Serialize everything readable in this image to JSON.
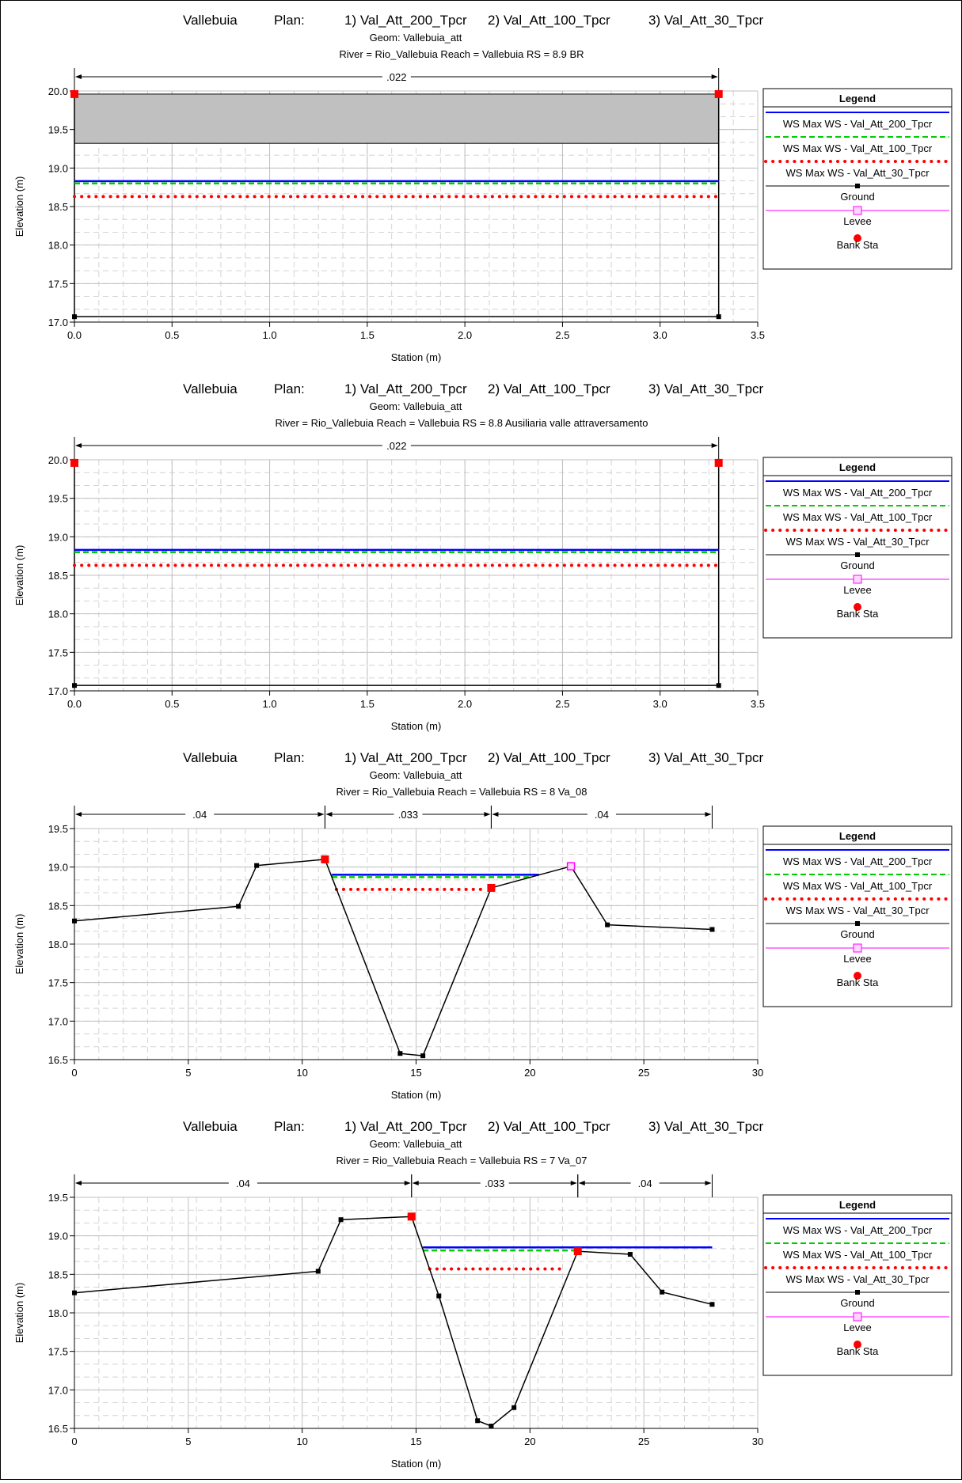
{
  "legend_shared": {
    "title": "Legend",
    "entries": [
      {
        "label": "WS Max WS - Val_Att_200_Tpcr",
        "color": "#0000ff",
        "style": "solid"
      },
      {
        "label": "WS Max WS - Val_Att_100_Tpcr",
        "color": "#00cc00",
        "style": "dashed"
      },
      {
        "label": "WS Max WS - Val_Att_30_Tpcr",
        "color": "#ff0000",
        "style": "dotted"
      },
      {
        "label": "Ground",
        "color": "#000000",
        "style": "line-square"
      },
      {
        "label": "Levee",
        "color": "#ff00ff",
        "style": "line-open-square"
      },
      {
        "label": "Bank Sta",
        "color": "#ff0000",
        "style": "circle"
      }
    ]
  },
  "chart_data": [
    {
      "type": "line",
      "title_parts": [
        "Vallebuia",
        "Plan:",
        "1) Val_Att_200_Tpcr",
        "2) Val_Att_100_Tpcr",
        "3) Val_Att_30_Tpcr"
      ],
      "geom": "Geom: Vallebuia_att",
      "river_line": "River = Rio_Vallebuia   Reach = Vallebuia      RS = 8.9      BR",
      "xlabel": "Station (m)",
      "ylabel": "Elevation (m)",
      "xlim": [
        0,
        3.5
      ],
      "ylim": [
        17.0,
        20.0
      ],
      "xticks": [
        "0.0",
        "0.5",
        "1.0",
        "1.5",
        "2.0",
        "2.5",
        "3.0",
        "3.5"
      ],
      "yticks": [
        "17.0",
        "17.5",
        "18.0",
        "18.5",
        "19.0",
        "19.5",
        "20.0"
      ],
      "xtick_values": [
        0,
        0.5,
        1.0,
        1.5,
        2.0,
        2.5,
        3.0,
        3.5
      ],
      "ytick_values": [
        17.0,
        17.5,
        18.0,
        18.5,
        19.0,
        19.5,
        20.0
      ],
      "mannings": [
        {
          "from": 0,
          "to": 3.3,
          "label": ".022"
        }
      ],
      "ground": [
        [
          0,
          17.07
        ],
        [
          3.3,
          17.07
        ]
      ],
      "walls": [
        [
          0,
          17.07,
          19.96
        ],
        [
          3.3,
          17.07,
          19.96
        ]
      ],
      "bridge_deck": {
        "x1": 0,
        "x2": 3.3,
        "low": 19.32,
        "high": 19.96
      },
      "ws": [
        {
          "name": "WS Max WS - Val_Att_200_Tpcr",
          "x1": 0,
          "x2": 3.3,
          "y": 18.83
        },
        {
          "name": "WS Max WS - Val_Att_100_Tpcr",
          "x1": 0,
          "x2": 3.3,
          "y": 18.8
        },
        {
          "name": "WS Max WS - Val_Att_30_Tpcr",
          "x1": 0,
          "x2": 3.3,
          "y": 18.63
        }
      ],
      "bank": [
        [
          0,
          19.96
        ],
        [
          3.3,
          19.96
        ]
      ],
      "levee": []
    },
    {
      "type": "line",
      "title_parts": [
        "Vallebuia",
        "Plan:",
        "1) Val_Att_200_Tpcr",
        "2) Val_Att_100_Tpcr",
        "3) Val_Att_30_Tpcr"
      ],
      "geom": "Geom: Vallebuia_att",
      "river_line": "River = Rio_Vallebuia   Reach = Vallebuia      RS = 8.8  Ausiliaria valle attraversamento",
      "xlabel": "Station (m)",
      "ylabel": "Elevation (m)",
      "xlim": [
        0,
        3.5
      ],
      "ylim": [
        17.0,
        20.0
      ],
      "xticks": [
        "0.0",
        "0.5",
        "1.0",
        "1.5",
        "2.0",
        "2.5",
        "3.0",
        "3.5"
      ],
      "yticks": [
        "17.0",
        "17.5",
        "18.0",
        "18.5",
        "19.0",
        "19.5",
        "20.0"
      ],
      "xtick_values": [
        0,
        0.5,
        1.0,
        1.5,
        2.0,
        2.5,
        3.0,
        3.5
      ],
      "ytick_values": [
        17.0,
        17.5,
        18.0,
        18.5,
        19.0,
        19.5,
        20.0
      ],
      "mannings": [
        {
          "from": 0,
          "to": 3.3,
          "label": ".022"
        }
      ],
      "ground": [
        [
          0,
          17.07
        ],
        [
          3.3,
          17.07
        ]
      ],
      "walls": [
        [
          0,
          17.07,
          19.96
        ],
        [
          3.3,
          17.07,
          19.96
        ]
      ],
      "ws": [
        {
          "name": "WS Max WS - Val_Att_200_Tpcr",
          "x1": 0,
          "x2": 3.3,
          "y": 18.83
        },
        {
          "name": "WS Max WS - Val_Att_100_Tpcr",
          "x1": 0,
          "x2": 3.3,
          "y": 18.8
        },
        {
          "name": "WS Max WS - Val_Att_30_Tpcr",
          "x1": 0,
          "x2": 3.3,
          "y": 18.63
        }
      ],
      "bank": [
        [
          0,
          19.96
        ],
        [
          3.3,
          19.96
        ]
      ],
      "levee": []
    },
    {
      "type": "line",
      "title_parts": [
        "Vallebuia",
        "Plan:",
        "1) Val_Att_200_Tpcr",
        "2) Val_Att_100_Tpcr",
        "3) Val_Att_30_Tpcr"
      ],
      "geom": "Geom: Vallebuia_att",
      "river_line": "River = Rio_Vallebuia   Reach = Vallebuia      RS = 8  Va_08",
      "xlabel": "Station (m)",
      "ylabel": "Elevation (m)",
      "xlim": [
        0,
        30
      ],
      "ylim": [
        16.5,
        19.5
      ],
      "xticks": [
        "0",
        "5",
        "10",
        "15",
        "20",
        "25",
        "30"
      ],
      "yticks": [
        "16.5",
        "17.0",
        "17.5",
        "18.0",
        "18.5",
        "19.0",
        "19.5"
      ],
      "xtick_values": [
        0,
        5,
        10,
        15,
        20,
        25,
        30
      ],
      "ytick_values": [
        16.5,
        17.0,
        17.5,
        18.0,
        18.5,
        19.0,
        19.5
      ],
      "mannings": [
        {
          "from": 0,
          "to": 11.0,
          "label": ".04"
        },
        {
          "from": 11.0,
          "to": 18.3,
          "label": ".033"
        },
        {
          "from": 18.3,
          "to": 28.0,
          "label": ".04"
        }
      ],
      "ground": [
        [
          0,
          18.3
        ],
        [
          7.2,
          18.49
        ],
        [
          8.0,
          19.02
        ],
        [
          11.0,
          19.1
        ],
        [
          14.3,
          16.58
        ],
        [
          15.3,
          16.55
        ],
        [
          18.3,
          18.73
        ],
        [
          21.8,
          19.01
        ],
        [
          23.4,
          18.25
        ],
        [
          28.0,
          18.19
        ]
      ],
      "walls": [],
      "ws": [
        {
          "name": "WS Max WS - Val_Att_200_Tpcr",
          "x1": 11.3,
          "x2": 20.4,
          "y": 18.9
        },
        {
          "name": "WS Max WS - Val_Att_100_Tpcr",
          "x1": 11.3,
          "x2": 20.0,
          "y": 18.87
        },
        {
          "name": "WS Max WS - Val_Att_30_Tpcr",
          "x1": 11.5,
          "x2": 18.0,
          "y": 18.71
        }
      ],
      "bank": [
        [
          11.0,
          19.1
        ],
        [
          18.3,
          18.73
        ]
      ],
      "levee": [
        [
          21.8,
          19.01
        ]
      ]
    },
    {
      "type": "line",
      "title_parts": [
        "Vallebuia",
        "Plan:",
        "1) Val_Att_200_Tpcr",
        "2) Val_Att_100_Tpcr",
        "3) Val_Att_30_Tpcr"
      ],
      "geom": "Geom: Vallebuia_att",
      "river_line": "River = Rio_Vallebuia   Reach = Vallebuia      RS = 7  Va_07",
      "xlabel": "Station (m)",
      "ylabel": "Elevation (m)",
      "xlim": [
        0,
        30
      ],
      "ylim": [
        16.5,
        19.5
      ],
      "xticks": [
        "0",
        "5",
        "10",
        "15",
        "20",
        "25",
        "30"
      ],
      "yticks": [
        "16.5",
        "17.0",
        "17.5",
        "18.0",
        "18.5",
        "19.0",
        "19.5"
      ],
      "xtick_values": [
        0,
        5,
        10,
        15,
        20,
        25,
        30
      ],
      "ytick_values": [
        16.5,
        17.0,
        17.5,
        18.0,
        18.5,
        19.0,
        19.5
      ],
      "mannings": [
        {
          "from": 0,
          "to": 14.8,
          "label": ".04"
        },
        {
          "from": 14.8,
          "to": 22.1,
          "label": ".033"
        },
        {
          "from": 22.1,
          "to": 28.0,
          "label": ".04"
        }
      ],
      "ground": [
        [
          0,
          18.26
        ],
        [
          10.7,
          18.54
        ],
        [
          11.7,
          19.21
        ],
        [
          14.8,
          19.25
        ],
        [
          16.0,
          18.22
        ],
        [
          17.7,
          16.6
        ],
        [
          18.3,
          16.53
        ],
        [
          19.3,
          16.77
        ],
        [
          22.1,
          18.8
        ],
        [
          24.4,
          18.76
        ],
        [
          25.8,
          18.27
        ],
        [
          28.0,
          18.11
        ]
      ],
      "walls": [],
      "ws": [
        {
          "name": "WS Max WS - Val_Att_200_Tpcr",
          "x1": 15.3,
          "x2": 28.0,
          "y": 18.85
        },
        {
          "name": "WS Max WS - Val_Att_100_Tpcr",
          "x1": 15.3,
          "x2": 22.1,
          "y": 18.81
        },
        {
          "name": "WS Max WS - Val_Att_30_Tpcr",
          "x1": 15.6,
          "x2": 21.5,
          "y": 18.57
        }
      ],
      "bank": [
        [
          14.8,
          19.25
        ],
        [
          22.1,
          18.8
        ]
      ],
      "levee": []
    }
  ]
}
